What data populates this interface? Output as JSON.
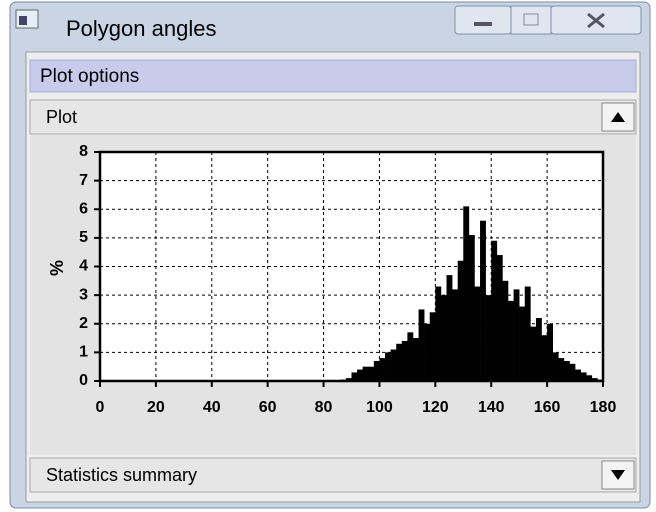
{
  "window": {
    "title": "Polygon angles"
  },
  "panel": {
    "title": "Plot options"
  },
  "sections": [
    "Plot",
    "Statistics summary"
  ],
  "chart_data": {
    "type": "histogram",
    "ylabel": "%",
    "color": "#000000",
    "grid": true,
    "bins": [
      0,
      2,
      4,
      6,
      8,
      10,
      12,
      14,
      16,
      18,
      20,
      22,
      24,
      26,
      28,
      30,
      32,
      34,
      36,
      38,
      40,
      42,
      44,
      46,
      48,
      50,
      52,
      54,
      56,
      58,
      60,
      62,
      64,
      66,
      68,
      70,
      72,
      74,
      76,
      78,
      80,
      82,
      84,
      86,
      88,
      90,
      92,
      94,
      96,
      98,
      100,
      102,
      104,
      106,
      108,
      110,
      112,
      114,
      116,
      118,
      120,
      122,
      124,
      126,
      128,
      130,
      132,
      134,
      136,
      138,
      140,
      142,
      144,
      146,
      148,
      150,
      152,
      154,
      156,
      158,
      160,
      162,
      164,
      166,
      168,
      170,
      172,
      174,
      176,
      178,
      180
    ],
    "counts": [
      0,
      0,
      0,
      0,
      0,
      0,
      0,
      0,
      0,
      0,
      0,
      0,
      0,
      0,
      0,
      0,
      0,
      0,
      0,
      0,
      0,
      0,
      0,
      0,
      0,
      0,
      0,
      0,
      0,
      0,
      0,
      0,
      0,
      0,
      0,
      0,
      0,
      0,
      0,
      0,
      0,
      0,
      0,
      0.05,
      0.1,
      0.3,
      0.4,
      0.5,
      0.5,
      0.7,
      0.8,
      1.0,
      1.1,
      1.3,
      1.4,
      1.7,
      1.5,
      2.5,
      2.0,
      2.4,
      3.3,
      3.0,
      3.7,
      3.2,
      4.2,
      6.1,
      5.1,
      3.3,
      5.6,
      3.0,
      4.9,
      4.4,
      3.5,
      2.8,
      3.2,
      2.6,
      3.3,
      1.9,
      2.2,
      1.6,
      2.0,
      1.0,
      0.8,
      0.7,
      0.6,
      0.4,
      0.3,
      0.2,
      0.1,
      0.05
    ],
    "xlim": [
      0,
      180
    ],
    "xticks": [
      0,
      20,
      40,
      60,
      80,
      100,
      120,
      140,
      160,
      180
    ],
    "ylim": [
      0,
      8
    ],
    "yticks": [
      0,
      1,
      2,
      3,
      4,
      5,
      6,
      7,
      8
    ]
  }
}
